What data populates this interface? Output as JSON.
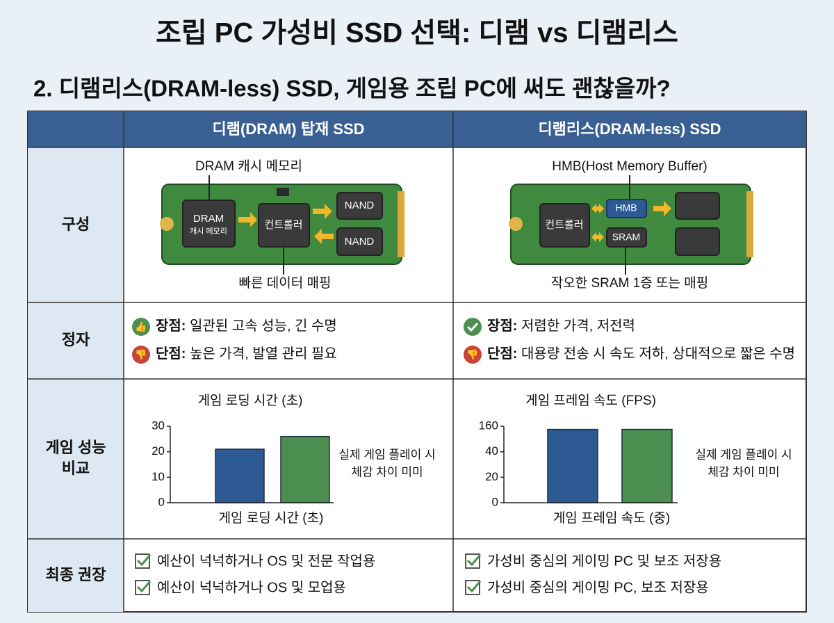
{
  "title": "조립 PC 가성비 SSD 선택: 디램 vs 디램리스",
  "subtitle": "2. 디램리스(DRAM-less) SSD, 게임용 조립 PC에 써도 괜찮을까?",
  "table": {
    "columns": [
      "디램(DRAM) 탑재 SSD",
      "디램리스(DRAM-less) SSD"
    ],
    "rows": [
      {
        "label": "구성",
        "left": {
          "caption_top": "DRAM 캐시 메모리",
          "dram": "DRAM",
          "dram_sub": "캐시 메모리",
          "controller": "컨트롤러",
          "nand": [
            "NAND",
            "NAND"
          ],
          "caption_bottom": "빠른 데이터 매핑"
        },
        "right": {
          "caption_top": "HMB(Host Memory Buffer)",
          "controller": "컨트롤러",
          "hmb": "HMB",
          "sram": "SRAM",
          "caption_bottom": "작오한 SRAM 1증 또는 매핑"
        }
      },
      {
        "label": "정자",
        "left": {
          "pros_label": "장점:",
          "pros": "일관된 고속 성능, 긴 수명",
          "cons_label": "단점:",
          "cons": "높은 가격, 발열 관리 필요"
        },
        "right": {
          "pros_label": "장점:",
          "pros": "저렴한 가격, 저전력",
          "cons_label": "단점:",
          "cons": "대용량 전송 시 속도 저하, 상대적으로 짧은 수명"
        }
      },
      {
        "label": [
          "게임 성능",
          "비교"
        ]
      },
      {
        "label": "최종 권장",
        "left": [
          "예산이 넉넉하거나 OS 및 전문 작업용",
          "예산이 넉넉하거나 OS 및 모업용"
        ],
        "right": [
          "가성비 중심의 게이밍 PC 및 보조 저장용",
          "가성비 중심의 게이밍 PC, 보조 저장용"
        ]
      }
    ]
  },
  "chart_data": [
    {
      "type": "bar",
      "title": "게임 로딩 시간 (초)",
      "x_label": "게임 로딩 시간 (초)",
      "categories": [
        null,
        null
      ],
      "values": [
        21,
        26
      ],
      "colors": [
        "#2e5a93",
        "#4d8f50"
      ],
      "ylim": [
        0,
        30
      ],
      "yticks": [
        0,
        10,
        20,
        30
      ],
      "note": [
        "실제 게임 플레이 시",
        "체감 차이 미미"
      ]
    },
    {
      "type": "bar",
      "title": "게임 프레임 속도 (FPS)",
      "x_label": "게임 프레임 속도 (중)",
      "categories": [
        null,
        null
      ],
      "values": [
        145,
        145
      ],
      "colors": [
        "#2e5a93",
        "#4d8f50"
      ],
      "ylim": [
        0,
        160
      ],
      "yticks": [
        0,
        20,
        40,
        160
      ],
      "note": [
        "실제 게임 플레이 시",
        "체감 차이 미미"
      ]
    }
  ]
}
